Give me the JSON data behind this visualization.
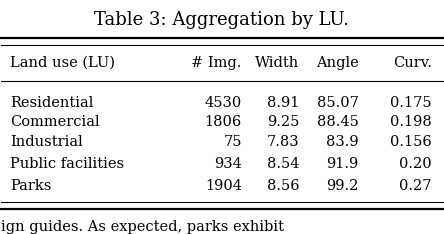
{
  "title": "Table 3: Aggregation by LU.",
  "columns": [
    "Land use (LU)",
    "# Img.",
    "Width",
    "Angle",
    "Curv."
  ],
  "rows": [
    [
      "Residential",
      "4530",
      "8.91",
      "85.07",
      "0.175"
    ],
    [
      "Commercial",
      "1806",
      "9.25",
      "88.45",
      "0.198"
    ],
    [
      "Industrial",
      "75",
      "7.83",
      "83.9",
      "0.156"
    ],
    [
      "Public facilities",
      "934",
      "8.54",
      "91.9",
      "0.20"
    ],
    [
      "Parks",
      "1904",
      "8.56",
      "99.2",
      "0.27"
    ]
  ],
  "background_color": "#ffffff",
  "text_color": "#000000",
  "title_fontsize": 13,
  "header_fontsize": 10.5,
  "body_fontsize": 10.5,
  "footer_text": "ign guides. As expected, parks exhibit"
}
